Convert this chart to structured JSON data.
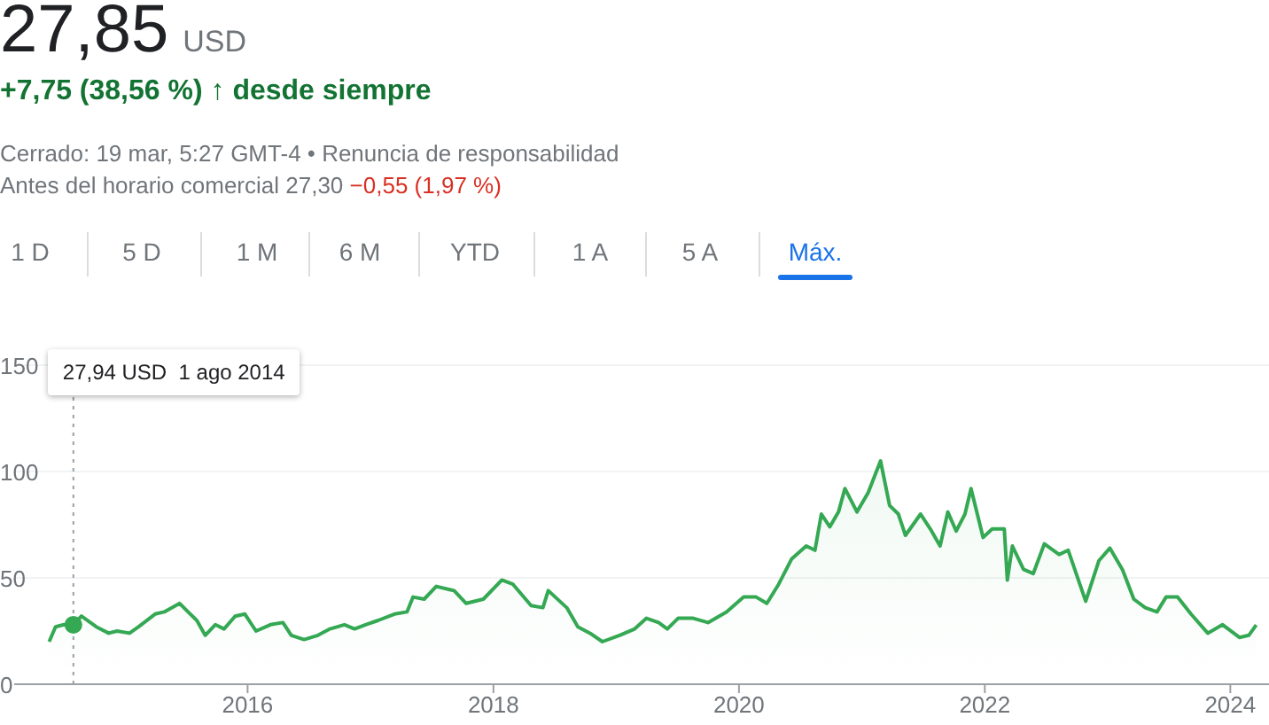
{
  "chart_data": {
    "type": "area",
    "title": "27,85 USD",
    "subtitle": "+7,75 (38,56 %) ↑ desde siempre",
    "annotations": [
      "Cerrado: 19 mar, 5:27 GMT-4 • Renuncia de responsabilidad",
      "Antes del horario comercial 27,30",
      "−0,55 (1,97 %)",
      "1 D",
      "5 D",
      "1 M",
      "6 M",
      "YTD",
      "1 A",
      "5 A",
      "Máx.",
      "27,94 USD  1 ago 2014"
    ],
    "x": [
      "2014-05-21",
      "2014-06-09",
      "2014-07-04",
      "2014-08-01",
      "2014-08-25",
      "2014-10-08",
      "2014-11-14",
      "2014-12-09",
      "2015-01-15",
      "2015-02-11",
      "2015-04-01",
      "2015-04-28",
      "2015-06-13",
      "2015-07-08",
      "2015-08-03",
      "2015-08-28",
      "2015-09-27",
      "2015-10-23",
      "2015-11-25",
      "2015-12-24",
      "2016-01-26",
      "2016-03-09",
      "2016-04-15",
      "2016-05-10",
      "2016-06-17",
      "2016-07-28",
      "2016-09-02",
      "2016-10-15",
      "2016-11-14",
      "2016-12-17",
      "2017-01-23",
      "2017-03-13",
      "2017-04-19",
      "2017-05-07",
      "2017-06-09",
      "2017-07-15",
      "2017-09-06",
      "2017-10-12",
      "2017-12-02",
      "2018-01-26",
      "2018-02-28",
      "2018-04-23",
      "2018-05-28",
      "2018-06-13",
      "2018-08-07",
      "2018-09-09",
      "2018-10-15",
      "2018-11-21",
      "2019-01-11",
      "2019-02-25",
      "2019-04-01",
      "2019-05-07",
      "2019-06-02",
      "2019-07-04",
      "2019-08-18",
      "2019-10-01",
      "2019-11-25",
      "2020-01-15",
      "2020-02-21",
      "2020-03-24",
      "2020-04-28",
      "2020-06-06",
      "2020-07-19",
      "2020-08-14",
      "2020-09-02",
      "2020-09-27",
      "2020-10-23",
      "2020-11-11",
      "2020-12-17",
      "2021-01-19",
      "2021-02-25",
      "2021-03-24",
      "2021-04-19",
      "2021-05-10",
      "2021-06-24",
      "2021-07-23",
      "2021-08-21",
      "2021-09-13",
      "2021-10-08",
      "2021-11-03",
      "2021-11-21",
      "2021-12-27",
      "2022-01-23",
      "2022-02-28",
      "2022-03-09",
      "2022-03-24",
      "2022-04-26",
      "2022-05-25",
      "2022-06-27",
      "2022-08-10",
      "2022-09-06",
      "2022-10-28",
      "2022-12-06",
      "2023-01-08",
      "2023-02-14",
      "2023-03-20",
      "2023-04-23",
      "2023-05-28",
      "2023-06-24",
      "2023-07-28",
      "2023-09-06",
      "2023-10-26",
      "2023-12-09",
      "2024-01-28",
      "2024-02-25",
      "2024-03-18"
    ],
    "series": [
      {
        "color": "#34a853",
        "values": [
          20,
          27,
          28,
          27.94,
          32,
          27,
          24,
          25,
          24,
          27,
          33,
          34,
          38,
          34,
          30,
          23,
          28,
          26,
          32,
          33,
          25,
          28,
          29,
          23,
          21,
          23,
          26,
          28,
          26,
          28,
          30,
          33,
          34,
          41,
          40,
          46,
          44,
          38,
          40,
          49,
          47,
          37,
          36,
          44,
          36,
          27,
          24,
          20,
          23,
          26,
          31,
          29,
          26,
          31,
          31,
          29,
          34,
          41,
          41,
          38,
          47,
          59,
          65,
          63,
          80,
          74,
          81,
          92,
          81,
          90,
          105,
          84,
          80,
          70,
          80,
          73,
          65,
          81,
          72,
          80,
          92,
          69,
          73,
          73,
          49,
          65,
          54,
          52,
          66,
          61,
          63,
          39,
          58,
          64,
          54,
          40,
          36,
          34,
          41,
          41,
          33,
          24,
          28,
          22,
          23,
          27.85
        ]
      }
    ],
    "xlim": [
      "2014-02-06",
      "2024-04-25"
    ],
    "xticks": [
      "2016",
      "2018",
      "2020",
      "2022",
      "2024"
    ],
    "ylim": [
      0,
      150
    ],
    "yticks": [
      0,
      50,
      100,
      150
    ],
    "grid": "y",
    "marker": "none",
    "ref_lines": [
      {
        "axis": "x",
        "value": "2014-08-01",
        "color": "#9aa0a6",
        "line_style": "dotted"
      }
    ]
  }
}
